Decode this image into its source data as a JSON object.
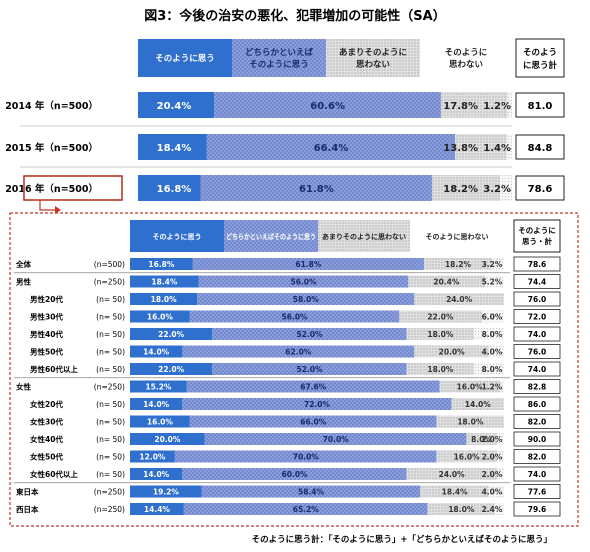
{
  "chart_data": [
    {
      "type": "bar",
      "title": "図3：今後の治安の悪化、犯罪増加の可能性（SA）",
      "series": [
        {
          "name": "そのように思う",
          "values": [
            20.4,
            18.4,
            16.8
          ]
        },
        {
          "name": "どちらかといえば\nそのように思う",
          "values": [
            60.6,
            66.4,
            61.8
          ]
        },
        {
          "name": "あまりそのように\n思わない",
          "values": [
            17.8,
            13.8,
            18.2
          ]
        },
        {
          "name": "そのように\n思わない",
          "values": [
            1.2,
            1.4,
            3.2
          ]
        }
      ],
      "total_header": "そのよう\nに思う計",
      "categories": [
        "2014 年（n=500）",
        "2015 年（n=500）",
        "2016 年（n=500）"
      ],
      "totals": [
        "81.0",
        "84.8",
        "78.6"
      ],
      "value_labels": [
        [
          "20.4%",
          "60.6%",
          "17.8%",
          "1.2%"
        ],
        [
          "18.4%",
          "66.4%",
          "13.8%",
          "1.4%"
        ],
        [
          "16.8%",
          "61.8%",
          "18.2%",
          "3.2%"
        ]
      ]
    },
    {
      "type": "bar",
      "series": [
        {
          "name": "そのように思う",
          "values": [
            16.8,
            18.4,
            18.0,
            16.0,
            22.0,
            14.0,
            22.0,
            15.2,
            14.0,
            16.0,
            20.0,
            12.0,
            14.0,
            19.2,
            14.4
          ]
        },
        {
          "name": "どちらかといえばそのように思う",
          "values": [
            61.8,
            56.0,
            58.0,
            56.0,
            52.0,
            62.0,
            52.0,
            67.6,
            72.0,
            66.0,
            70.0,
            70.0,
            60.0,
            58.4,
            65.2
          ]
        },
        {
          "name": "あまりそのように思わない",
          "values": [
            18.2,
            20.4,
            24.0,
            22.0,
            18.0,
            20.0,
            18.0,
            16.0,
            14.0,
            18.0,
            8.0,
            16.0,
            24.0,
            18.4,
            18.0
          ]
        },
        {
          "name": "そのように思わない",
          "values": [
            3.2,
            5.2,
            0,
            6.0,
            8.0,
            4.0,
            8.0,
            1.2,
            0,
            0,
            2.0,
            2.0,
            2.0,
            4.0,
            2.4
          ]
        }
      ],
      "total_header": "そのように\n思う・計",
      "rows": [
        {
          "label": "全体",
          "n": "(n=500)",
          "indent": false,
          "group_start": true
        },
        {
          "label": "男性",
          "n": "(n=250)",
          "indent": false,
          "group_start": true
        },
        {
          "label": "男性20代",
          "n": "(n=  50)",
          "indent": true,
          "group_start": false
        },
        {
          "label": "男性30代",
          "n": "(n=  50)",
          "indent": true,
          "group_start": false
        },
        {
          "label": "男性40代",
          "n": "(n=  50)",
          "indent": true,
          "group_start": false
        },
        {
          "label": "男性50代",
          "n": "(n=  50)",
          "indent": true,
          "group_start": false
        },
        {
          "label": "男性60代以上",
          "n": "(n=  50)",
          "indent": true,
          "group_start": false
        },
        {
          "label": "女性",
          "n": "(n=250)",
          "indent": false,
          "group_start": true
        },
        {
          "label": "女性20代",
          "n": "(n=  50)",
          "indent": true,
          "group_start": false
        },
        {
          "label": "女性30代",
          "n": "(n=  50)",
          "indent": true,
          "group_start": false
        },
        {
          "label": "女性40代",
          "n": "(n=  50)",
          "indent": true,
          "group_start": false
        },
        {
          "label": "女性50代",
          "n": "(n=  50)",
          "indent": true,
          "group_start": false
        },
        {
          "label": "女性60代以上",
          "n": "(n=  50)",
          "indent": true,
          "group_start": false
        },
        {
          "label": "東日本",
          "n": "(n=250)",
          "indent": false,
          "group_start": true
        },
        {
          "label": "西日本",
          "n": "(n=250)",
          "indent": false,
          "group_start": false
        }
      ],
      "value_labels": [
        [
          "16.8%",
          "61.8%",
          "18.2%",
          "3.2%"
        ],
        [
          "18.4%",
          "56.0%",
          "20.4%",
          "5.2%"
        ],
        [
          "18.0%",
          "58.0%",
          "24.0%",
          ""
        ],
        [
          "16.0%",
          "56.0%",
          "22.0%",
          "6.0%"
        ],
        [
          "22.0%",
          "52.0%",
          "18.0%",
          "8.0%"
        ],
        [
          "14.0%",
          "62.0%",
          "20.0%",
          "4.0%"
        ],
        [
          "22.0%",
          "52.0%",
          "18.0%",
          "8.0%"
        ],
        [
          "15.2%",
          "67.6%",
          "16.0%",
          "1.2%"
        ],
        [
          "14.0%",
          "72.0%",
          "14.0%",
          ""
        ],
        [
          "16.0%",
          "66.0%",
          "18.0%",
          ""
        ],
        [
          "20.0%",
          "70.0%",
          "8.0%",
          "2.0%"
        ],
        [
          "12.0%",
          "70.0%",
          "16.0%",
          "2.0%"
        ],
        [
          "14.0%",
          "60.0%",
          "24.0%",
          "2.0%"
        ],
        [
          "19.2%",
          "58.4%",
          "18.4%",
          "4.0%"
        ],
        [
          "14.4%",
          "65.2%",
          "18.0%",
          "2.4%"
        ]
      ],
      "totals": [
        "78.6",
        "74.4",
        "76.0",
        "72.0",
        "74.0",
        "76.0",
        "74.0",
        "82.8",
        "86.0",
        "82.0",
        "90.0",
        "82.0",
        "74.0",
        "77.6",
        "79.6"
      ]
    }
  ],
  "footnote": "そのように思う計：「そのように思う」+「どちらかといえばそのように思う」",
  "colors": {
    "strong": "#2f6fce",
    "medium": "#7f93d6",
    "weak": "#d6d6d6",
    "none": "#f0f0f0",
    "highlight": "#c0392b"
  }
}
